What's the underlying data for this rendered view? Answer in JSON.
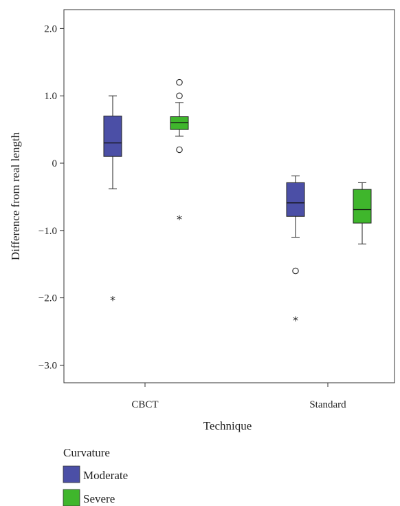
{
  "chart_data": {
    "type": "box",
    "title": "",
    "xlabel": "Technique",
    "ylabel": "Difference from real length",
    "ylim": [
      -3.3,
      2.3
    ],
    "yticks": [
      {
        "value": 2.0,
        "label": "2.0"
      },
      {
        "value": 1.0,
        "label": "1.0"
      },
      {
        "value": 0,
        "label": "0"
      },
      {
        "value": -1.0,
        "label": "−1.0"
      },
      {
        "value": -2.0,
        "label": "−2.0"
      },
      {
        "value": -3.0,
        "label": "−3.0"
      }
    ],
    "categories": [
      "CBCT",
      "Standard"
    ],
    "legend": {
      "title": "Curvature",
      "position": "bottom-left",
      "entries": [
        {
          "name": "Moderate",
          "color": "#4b4fa6"
        },
        {
          "name": "Severe",
          "color": "#3fb62c"
        }
      ]
    },
    "series": [
      {
        "name": "Moderate",
        "color": "#4b4fa6",
        "boxes": [
          {
            "category": "CBCT",
            "whisker_low": -0.38,
            "q1": 0.1,
            "median": 0.3,
            "q3": 0.7,
            "whisker_high": 1.0,
            "outliers": [],
            "extremes": [
              -2.0
            ]
          },
          {
            "category": "Standard",
            "whisker_low": -1.1,
            "q1": -0.79,
            "median": -0.59,
            "q3": -0.29,
            "whisker_high": -0.19,
            "outliers": [
              -1.6
            ],
            "extremes": [
              -2.3
            ]
          }
        ]
      },
      {
        "name": "Severe",
        "color": "#3fb62c",
        "boxes": [
          {
            "category": "CBCT",
            "whisker_low": 0.4,
            "q1": 0.5,
            "median": 0.6,
            "q3": 0.69,
            "whisker_high": 0.9,
            "outliers": [
              1.2,
              1.0,
              0.2
            ],
            "extremes": [
              -0.8
            ]
          },
          {
            "category": "Standard",
            "whisker_low": -1.2,
            "q1": -0.89,
            "median": -0.69,
            "q3": -0.39,
            "whisker_high": -0.29,
            "outliers": [],
            "extremes": []
          }
        ]
      }
    ],
    "markers": {
      "outlier": "○",
      "extreme": "*"
    }
  }
}
